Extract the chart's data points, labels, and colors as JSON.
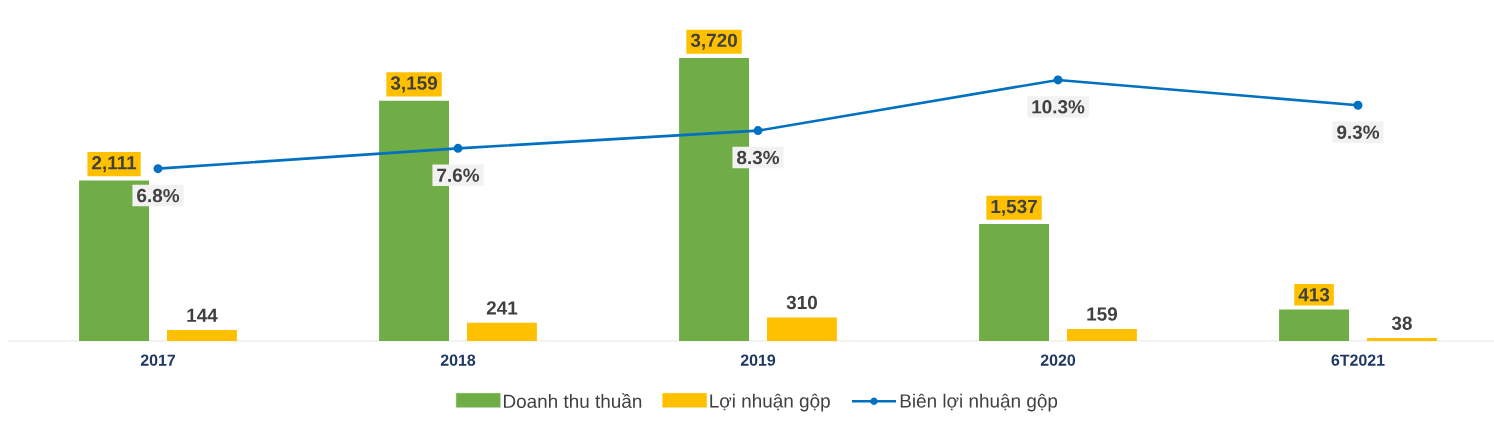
{
  "chart_data": {
    "type": "bar",
    "categories": [
      "2017",
      "2018",
      "2019",
      "2020",
      "6T2021"
    ],
    "series": [
      {
        "name": "Doanh thu thuần",
        "color": "#70ad47",
        "values": [
          2111,
          3159,
          3720,
          1537,
          413
        ],
        "value_labels": [
          "2,111",
          "3,159",
          "3,720",
          "1,537",
          "413"
        ]
      },
      {
        "name": "Lợi nhuận gộp",
        "color": "#ffc000",
        "values": [
          144,
          241,
          310,
          159,
          38
        ],
        "value_labels": [
          "144",
          "241",
          "310",
          "159",
          "38"
        ]
      },
      {
        "name": "Biên lợi nhuận gộp",
        "type": "line",
        "axis": "y2",
        "color": "#0070c0",
        "marker": "circle",
        "values": [
          6.8,
          7.6,
          8.3,
          10.3,
          9.3
        ],
        "value_labels": [
          "6.8%",
          "7.6%",
          "8.3%",
          "10.3%",
          "9.3%"
        ]
      }
    ],
    "tick_labels": "x",
    "legend": "bottom"
  }
}
